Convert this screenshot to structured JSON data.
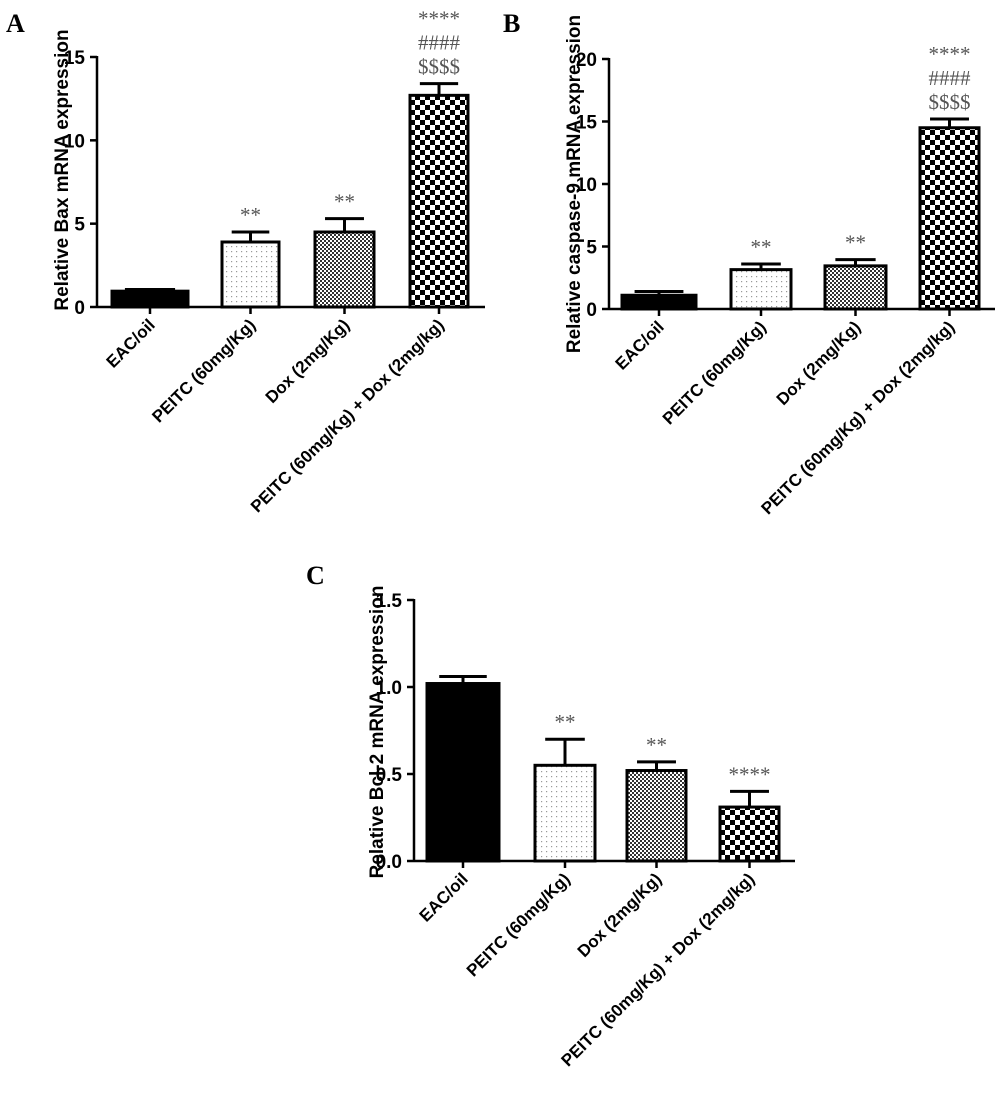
{
  "colors": {
    "ink": "#000000",
    "sig_text": "#555555",
    "background": "#ffffff"
  },
  "chart_data": [
    {
      "type": "bar",
      "panel": "A",
      "title": "",
      "xlabel": "",
      "ylabel": "Relative Bax mRNA expression",
      "ylim": [
        0,
        15
      ],
      "yticks": [
        "0",
        "5",
        "10",
        "15"
      ],
      "grid": false,
      "categories": [
        "EAC/oil",
        "PEITC (60mg/Kg)",
        "Dox (2mg/Kg)",
        "PEITC (60mg/Kg) + Dox (2mg/kg)"
      ],
      "values": [
        0.95,
        3.9,
        4.5,
        12.7
      ],
      "errors": [
        0.1,
        0.6,
        0.8,
        0.7
      ],
      "fills": [
        "solid-black",
        "sparse-dots",
        "dense-checker",
        "large-checker"
      ],
      "annotations": [
        [],
        [
          "**"
        ],
        [
          "**"
        ],
        [
          "****",
          "####",
          "$$$$"
        ]
      ]
    },
    {
      "type": "bar",
      "panel": "B",
      "title": "",
      "xlabel": "",
      "ylabel": "Relative caspase-9 mRNA expression",
      "ylim": [
        0,
        20
      ],
      "yticks": [
        "0",
        "5",
        "10",
        "15",
        "20"
      ],
      "grid": false,
      "categories": [
        "EAC/oil",
        "PEITC (60mg/Kg)",
        "Dox (2mg/Kg)",
        "PEITC (60mg/Kg) + Dox (2mg/kg)"
      ],
      "values": [
        1.1,
        3.15,
        3.45,
        14.5
      ],
      "errors": [
        0.3,
        0.45,
        0.5,
        0.7
      ],
      "fills": [
        "solid-black",
        "sparse-dots",
        "dense-checker",
        "large-checker"
      ],
      "annotations": [
        [],
        [
          "**"
        ],
        [
          "**"
        ],
        [
          "****",
          "####",
          "$$$$"
        ]
      ]
    },
    {
      "type": "bar",
      "panel": "C",
      "title": "",
      "xlabel": "",
      "ylabel": "Relative Bcl-2 mRNA expression",
      "ylim": [
        0,
        1.5
      ],
      "yticks": [
        "0.0",
        "0.5",
        "1.0",
        "1.5"
      ],
      "grid": false,
      "categories": [
        "EAC/oil",
        "PEITC (60mg/Kg)",
        "Dox (2mg/Kg)",
        "PEITC (60mg/Kg) + Dox (2mg/kg)"
      ],
      "values": [
        1.02,
        0.55,
        0.52,
        0.31
      ],
      "errors": [
        0.04,
        0.15,
        0.05,
        0.09
      ],
      "fills": [
        "solid-black",
        "sparse-dots",
        "dense-checker",
        "large-checker"
      ],
      "annotations": [
        [],
        [
          "**"
        ],
        [
          "**"
        ],
        [
          "****"
        ]
      ]
    }
  ]
}
